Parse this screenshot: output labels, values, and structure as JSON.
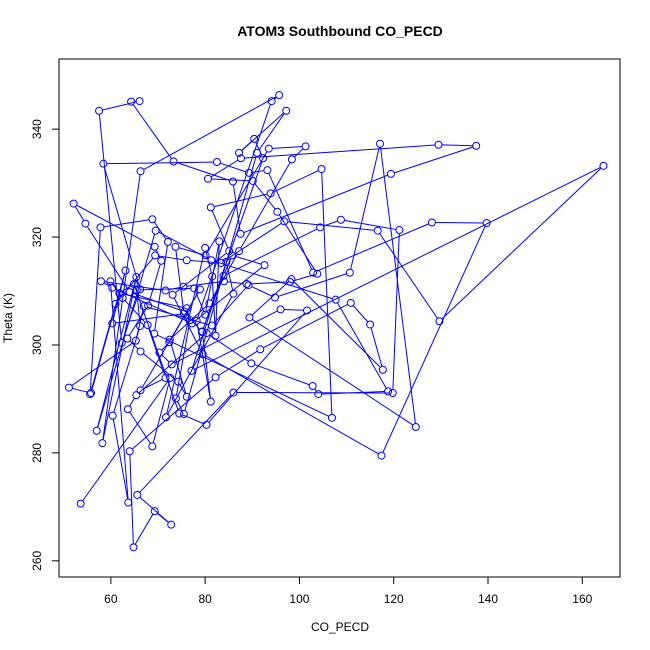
{
  "chart_data": {
    "type": "line",
    "title": "ATOM3 Southbound CO_PECD",
    "xlabel": "CO_PECD",
    "ylabel": "Theta (K)",
    "xlim": [
      49,
      168
    ],
    "ylim": [
      257,
      353
    ],
    "xticks": [
      60,
      80,
      100,
      120,
      140,
      160
    ],
    "yticks": [
      260,
      280,
      300,
      320,
      340
    ],
    "grid": false,
    "legend": "none",
    "series_color": "#0000ff",
    "series": [
      {
        "x": [
          79.3,
          75.6,
          64.0,
          54.6,
          52.1,
          69.3,
          70.7,
          67.9,
          63.5,
          66.3,
          74.3,
          76.1,
          72.5,
          80.9,
          87.2,
          98.4,
          101.3,
          93.5,
          80.1,
          73.7,
          75.5,
          60.3,
          63.1,
          55.8,
          51.1,
          65.3,
          67.0,
          81.4,
          89.2,
          94.8,
          110.7,
          117.1,
          124.7,
          89.4,
          98.3,
          117.7,
          115.0,
          110.9,
          91.7,
          82.2,
          64.0,
          64.8,
          69.3,
          72.8,
          65.6,
          86.0,
          119.8,
          121.2,
          108.8,
          104.4,
          83.9,
          85.7,
          92.6,
          77.2,
          60.3,
          57.9,
          71.6,
          75.4,
          84.0,
          88.8,
          98.0,
          103.8,
          95.3,
          90.1,
          80.6,
          87.6,
          129.5,
          137.5,
          119.4,
          87.5,
          85.9,
          73.3,
          64.3,
          66.1,
          57.5,
          62.3,
          66.2,
          58.4,
          82.5,
          89.3,
          93.2,
          102.9,
          128.1,
          139.7,
          117.4,
          79.5,
          73.1,
          85.1,
          81.2,
          93.9,
          104.7,
          106.9,
          69.2,
          72.1,
          68.8,
          57.8,
          55.6,
          61.0,
          69.4,
          76.1,
          83.4,
          96.8,
          116.6,
          129.7,
          164.5,
          77.1,
          84.5,
          86.0,
          71.7,
          80.0,
          81.5,
          82.2,
          83.0,
          80.0,
          77.7,
          65.5,
          66.2,
          60.4,
          63.7,
          59.9,
          62.5,
          67.8,
          71.6,
          66.3,
          78.9,
          72.4,
          70.3,
          72.9,
          96.0,
          101.6,
          80.3,
          74.5,
          64.9,
          61.8,
          76.1,
          76.8,
          73.8,
          75.5,
          91.0,
          97.2,
          87.2,
          90.4,
          92.3,
          79.4,
          81.2,
          78.2,
          94.1,
          95.7,
          66.3,
          58.2,
          65.4,
          57.0,
          69.5,
          81.3,
          107.7,
          118.8,
          104.0,
          102.8,
          89.8,
          80.3,
          65.4,
          63.6,
          68.8,
          72.6,
          53.6
        ],
        "values": [
          302.4,
          306.2,
          309.8,
          322.5,
          326.2,
          318.2,
          315.6,
          307.3,
          301.2,
          298.8,
          293.2,
          290.4,
          301.0,
          307.7,
          317.4,
          334.4,
          336.8,
          336.4,
          316.6,
          318.2,
          305.8,
          304.0,
          313.8,
          291.1,
          292.1,
          300.8,
          307.2,
          303.6,
          311.1,
          308.8,
          313.4,
          337.3,
          284.8,
          305.1,
          312.2,
          295.4,
          303.8,
          307.8,
          299.2,
          294.0,
          280.3,
          262.5,
          269.2,
          266.7,
          272.2,
          291.2,
          291.1,
          321.3,
          323.2,
          321.8,
          312.8,
          316.6,
          314.8,
          304.0,
          310.6,
          311.8,
          310.1,
          310.8,
          311.8,
          311.3,
          311.7,
          313.2,
          324.7,
          330.4,
          330.8,
          334.6,
          337.1,
          336.9,
          331.7,
          320.6,
          330.3,
          334.0,
          345.1,
          345.2,
          343.4,
          300.4,
          310.3,
          333.6,
          333.9,
          331.9,
          332.4,
          313.4,
          322.7,
          322.6,
          279.5,
          298.3,
          309.3,
          317.4,
          325.5,
          328.1,
          332.6,
          286.5,
          302.1,
          319.1,
          323.3,
          321.8,
          290.9,
          307.6,
          316.6,
          315.7,
          315.2,
          322.9,
          321.2,
          304.4,
          333.2,
          295.2,
          315.4,
          309.5,
          286.6,
          318.0,
          312.7,
          301.7,
          319.2,
          305.6,
          310.5,
          310.2,
          303.5,
          286.9,
          270.8,
          311.8,
          308.7,
          303.7,
          293.9,
          291.6,
          310.3,
          300.5,
          298.6,
          296.4,
          306.6,
          306.4,
          285.2,
          287.3,
          311.3,
          309.6,
          306.8,
          304.6,
          290.1,
          287.2,
          335.6,
          343.4,
          335.6,
          338.2,
          334.6,
          302.5,
          289.5,
          304.5,
          345.2,
          346.3,
          332.2,
          281.8,
          312.6,
          284.1,
          321.2,
          315.7,
          308.4,
          291.4,
          290.9,
          292.4,
          296.6,
          302.2,
          290.7,
          288.1,
          281.2,
          293.9,
          270.6
        ]
      }
    ]
  }
}
